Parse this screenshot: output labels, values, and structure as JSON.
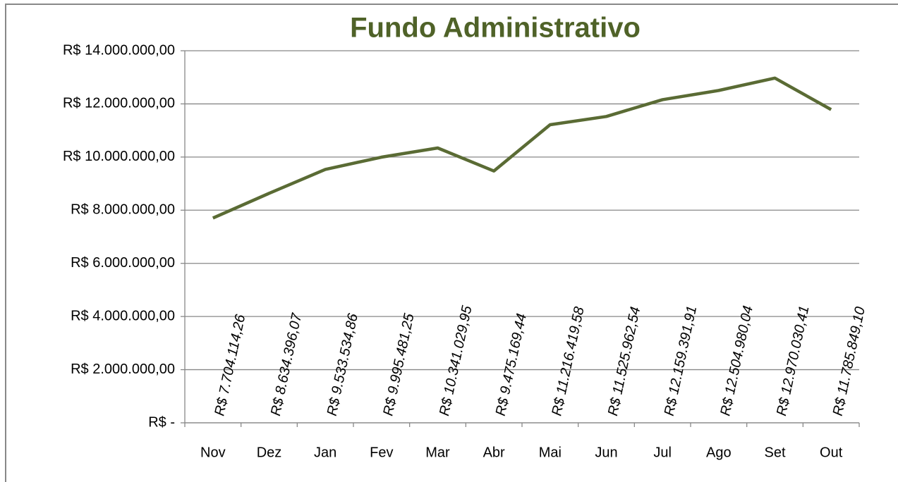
{
  "chart_data": {
    "type": "line",
    "title": "Fundo Administrativo",
    "categories": [
      "Nov",
      "Dez",
      "Jan",
      "Fev",
      "Mar",
      "Abr",
      "Mai",
      "Jun",
      "Jul",
      "Ago",
      "Set",
      "Out"
    ],
    "series": [
      {
        "name": "Fundo Administrativo",
        "color": "#5a6b34",
        "values": [
          7704114.26,
          8634396.07,
          9533534.86,
          9995481.25,
          10341029.95,
          9475169.44,
          11216419.58,
          11525962.54,
          12159391.91,
          12504980.04,
          12970030.41,
          11785849.1
        ],
        "value_labels": [
          "R$ 7.704.114,26",
          "R$ 8.634.396,07",
          "R$ 9.533.534,86",
          "R$ 9.995.481,25",
          "R$ 10.341.029,95",
          "R$ 9.475.169,44",
          "R$ 11.216.419,58",
          "R$ 11.525.962,54",
          "R$ 12.159.391,91",
          "R$ 12.504.980,04",
          "R$ 12.970.030,41",
          "R$ 11.785.849,10"
        ]
      }
    ],
    "ylim": [
      0,
      14000000
    ],
    "yticks": [
      {
        "value": 0,
        "label": "R$ -"
      },
      {
        "value": 2000000,
        "label": "R$ 2.000.000,00"
      },
      {
        "value": 4000000,
        "label": "R$ 4.000.000,00"
      },
      {
        "value": 6000000,
        "label": "R$ 6.000.000,00"
      },
      {
        "value": 8000000,
        "label": "R$ 8.000.000,00"
      },
      {
        "value": 10000000,
        "label": "R$ 10.000.000,00"
      },
      {
        "value": 12000000,
        "label": "R$ 12.000.000,00"
      },
      {
        "value": 14000000,
        "label": "R$ 14.000.000,00"
      }
    ],
    "grid": true
  }
}
